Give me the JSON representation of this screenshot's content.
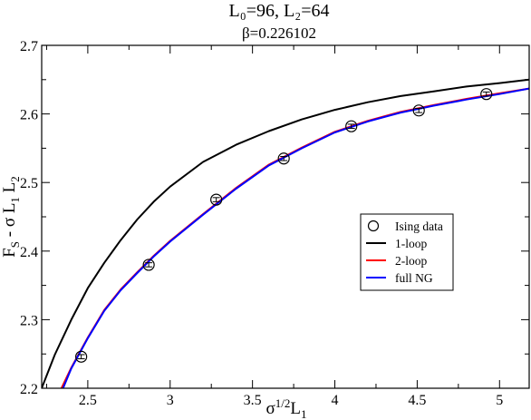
{
  "chart_data": {
    "type": "line",
    "title": "L₀=96,  L₂=64",
    "subtitle": "β=0.226102",
    "xlabel": "σ¹ᐟ²L₁",
    "xlabel_parts": {
      "base": "σ",
      "sup": "1/2",
      "mid": "L",
      "sub": "1"
    },
    "ylabel_parts": [
      {
        "t": "F",
        "shift": 0
      },
      {
        "t": "S",
        "shift": 1
      },
      {
        "t": " - σ L",
        "shift": 0
      },
      {
        "t": "1",
        "shift": 1
      },
      {
        "t": " L",
        "shift": 0
      },
      {
        "t": "2",
        "shift": 1
      }
    ],
    "xlim": [
      2.22,
      5.18
    ],
    "ylim": [
      2.2,
      2.7
    ],
    "x_ticks": [
      2.5,
      3,
      3.5,
      4,
      4.5,
      5
    ],
    "x_tick_labels": [
      "2.5",
      "3",
      "3.5",
      "4",
      "4.5",
      "5"
    ],
    "y_ticks": [
      2.2,
      2.3,
      2.4,
      2.5,
      2.6,
      2.7
    ],
    "y_tick_labels": [
      "2.2",
      "2.3",
      "2.4",
      "2.5",
      "2.6",
      "2.7"
    ],
    "grid": false,
    "legend_position": "center-right",
    "series": [
      {
        "name": "Ising data",
        "kind": "scatter",
        "color": "#000000",
        "points": [
          {
            "x": 2.46,
            "y": 2.246,
            "err": 0.003
          },
          {
            "x": 2.87,
            "y": 2.38,
            "err": 0.003
          },
          {
            "x": 3.28,
            "y": 2.475,
            "err": 0.003
          },
          {
            "x": 3.69,
            "y": 2.535,
            "err": 0.003
          },
          {
            "x": 4.1,
            "y": 2.582,
            "err": 0.003
          },
          {
            "x": 4.51,
            "y": 2.605,
            "err": 0.003
          },
          {
            "x": 4.92,
            "y": 2.629,
            "err": 0.003
          }
        ]
      },
      {
        "name": "1-loop",
        "kind": "line",
        "color": "#000000",
        "points": [
          [
            2.22,
            2.2
          ],
          [
            2.3,
            2.249
          ],
          [
            2.4,
            2.3
          ],
          [
            2.5,
            2.346
          ],
          [
            2.6,
            2.383
          ],
          [
            2.7,
            2.416
          ],
          [
            2.8,
            2.446
          ],
          [
            2.9,
            2.472
          ],
          [
            3.0,
            2.494
          ],
          [
            3.2,
            2.53
          ],
          [
            3.4,
            2.555
          ],
          [
            3.6,
            2.575
          ],
          [
            3.8,
            2.592
          ],
          [
            4.0,
            2.606
          ],
          [
            4.2,
            2.617
          ],
          [
            4.4,
            2.626
          ],
          [
            4.6,
            2.633
          ],
          [
            4.8,
            2.64
          ],
          [
            5.0,
            2.645
          ],
          [
            5.18,
            2.65
          ]
        ]
      },
      {
        "name": "2-loop",
        "kind": "line",
        "color": "#ff0000",
        "points": [
          [
            2.34,
            2.2
          ],
          [
            2.4,
            2.23
          ],
          [
            2.5,
            2.274
          ],
          [
            2.6,
            2.314
          ],
          [
            2.7,
            2.344
          ],
          [
            2.8,
            2.369
          ],
          [
            2.9,
            2.393
          ],
          [
            3.0,
            2.415
          ],
          [
            3.2,
            2.454
          ],
          [
            3.4,
            2.492
          ],
          [
            3.6,
            2.526
          ],
          [
            3.8,
            2.551
          ],
          [
            4.0,
            2.574
          ],
          [
            4.2,
            2.59
          ],
          [
            4.4,
            2.603
          ],
          [
            4.6,
            2.613
          ],
          [
            4.8,
            2.622
          ],
          [
            5.0,
            2.63
          ],
          [
            5.18,
            2.637
          ]
        ]
      },
      {
        "name": "full NG",
        "kind": "line",
        "color": "#0000ff",
        "points": [
          [
            2.35,
            2.2
          ],
          [
            2.4,
            2.229
          ],
          [
            2.5,
            2.273
          ],
          [
            2.6,
            2.313
          ],
          [
            2.7,
            2.343
          ],
          [
            2.8,
            2.368
          ],
          [
            2.9,
            2.392
          ],
          [
            3.0,
            2.414
          ],
          [
            3.2,
            2.453
          ],
          [
            3.4,
            2.491
          ],
          [
            3.6,
            2.525
          ],
          [
            3.8,
            2.55
          ],
          [
            4.0,
            2.573
          ],
          [
            4.2,
            2.589
          ],
          [
            4.4,
            2.602
          ],
          [
            4.6,
            2.612
          ],
          [
            4.8,
            2.621
          ],
          [
            5.0,
            2.629
          ],
          [
            5.18,
            2.637
          ]
        ]
      }
    ]
  }
}
